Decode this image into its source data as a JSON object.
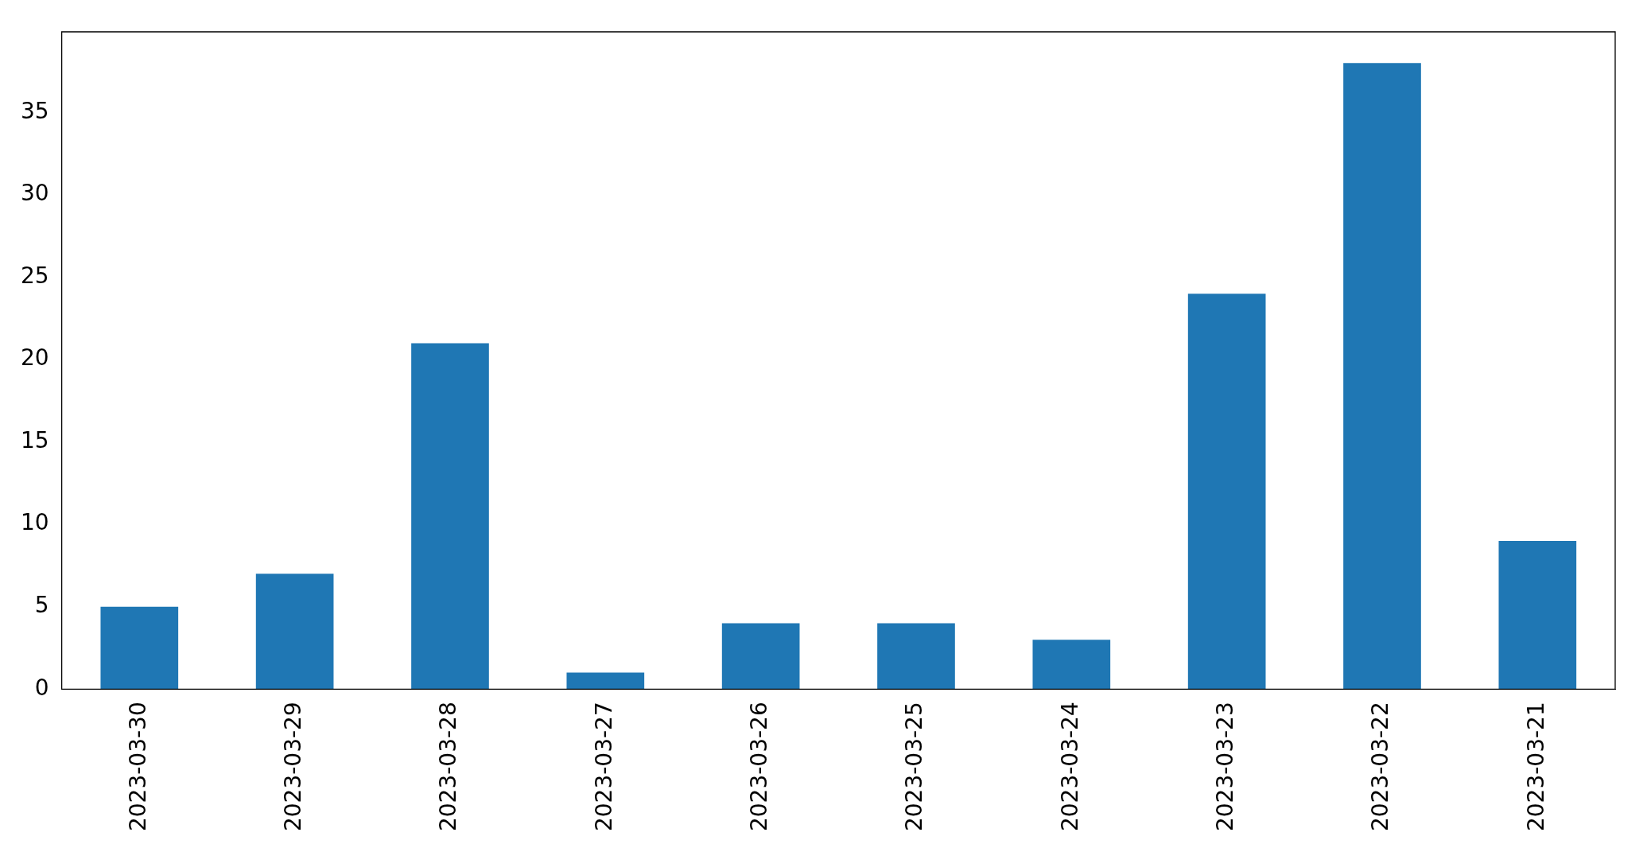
{
  "chart_data": {
    "type": "bar",
    "categories": [
      "2023-03-30",
      "2023-03-29",
      "2023-03-28",
      "2023-03-27",
      "2023-03-26",
      "2023-03-25",
      "2023-03-24",
      "2023-03-23",
      "2023-03-22",
      "2023-03-21"
    ],
    "values": [
      5,
      7,
      21,
      1,
      4,
      4,
      3,
      24,
      38,
      9
    ],
    "color": "#1f77b4",
    "ylim": [
      0,
      39.9
    ],
    "yticks": [
      0,
      5,
      10,
      15,
      20,
      25,
      30,
      35
    ],
    "grid": false,
    "legend": false
  }
}
